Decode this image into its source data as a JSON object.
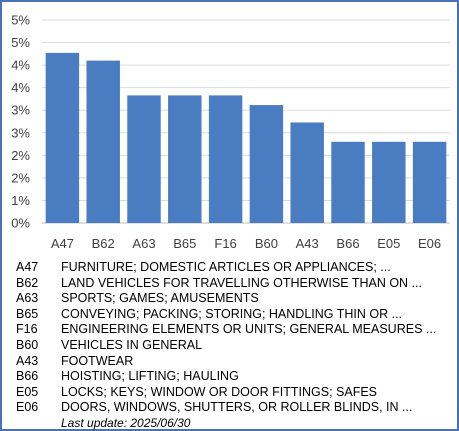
{
  "chart_data": {
    "type": "bar",
    "categories": [
      "A47",
      "B62",
      "A63",
      "B65",
      "F16",
      "B60",
      "A43",
      "B66",
      "E05",
      "E06"
    ],
    "values": [
      4.4,
      4.2,
      3.3,
      3.3,
      3.3,
      3.05,
      2.6,
      2.1,
      2.1,
      2.1
    ],
    "yticks": [
      "0%",
      "1%",
      "2%",
      "2%",
      "3%",
      "3%",
      "4%",
      "4%",
      "5%",
      "5%"
    ],
    "ylim": [
      0,
      5.25
    ],
    "bar_color": "#4a7cc2",
    "grid": true
  },
  "legend": [
    {
      "code": "A47",
      "desc": "FURNITURE; DOMESTIC ARTICLES OR APPLIANCES; ..."
    },
    {
      "code": "B62",
      "desc": "LAND VEHICLES FOR TRAVELLING OTHERWISE THAN ON ..."
    },
    {
      "code": "A63",
      "desc": "SPORTS; GAMES; AMUSEMENTS"
    },
    {
      "code": "B65",
      "desc": "CONVEYING; PACKING; STORING; HANDLING THIN OR ..."
    },
    {
      "code": "F16",
      "desc": "ENGINEERING ELEMENTS OR UNITS; GENERAL MEASURES ..."
    },
    {
      "code": "B60",
      "desc": "VEHICLES IN GENERAL"
    },
    {
      "code": "A43",
      "desc": "FOOTWEAR"
    },
    {
      "code": "B66",
      "desc": "HOISTING; LIFTING; HAULING"
    },
    {
      "code": "E05",
      "desc": "LOCKS; KEYS; WINDOW OR DOOR FITTINGS; SAFES"
    },
    {
      "code": "E06",
      "desc": "DOORS, WINDOWS, SHUTTERS, OR ROLLER BLINDS, IN ..."
    }
  ],
  "last_update": "Last update:  2025/06/30"
}
